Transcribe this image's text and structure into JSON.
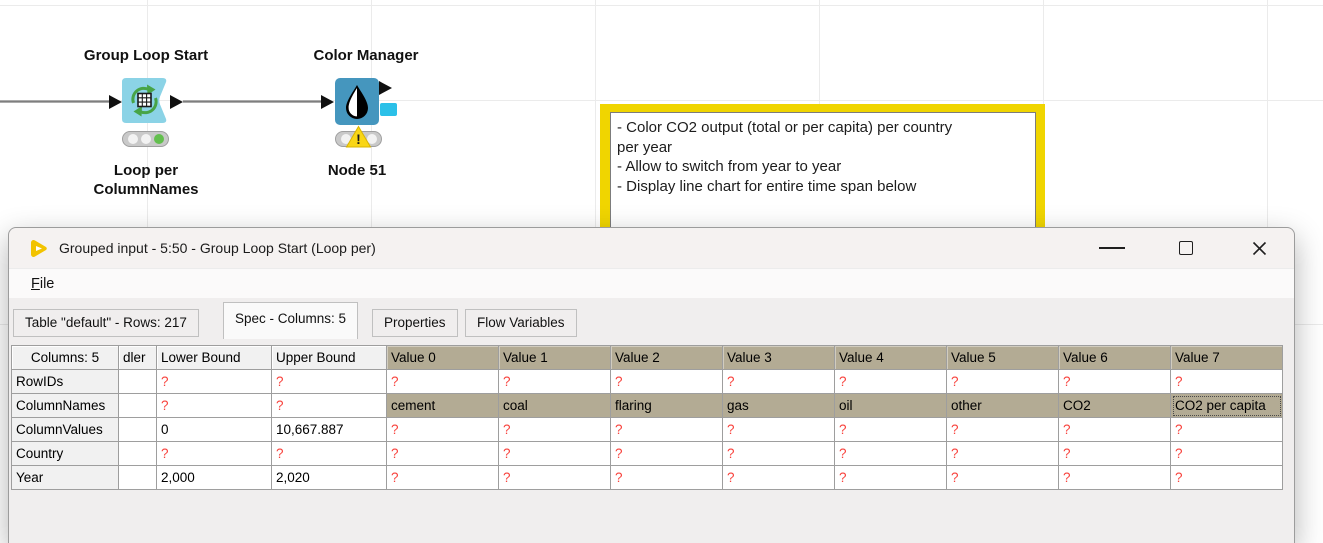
{
  "workflow": {
    "nodes": [
      {
        "title": "Group Loop Start",
        "status": "executed",
        "labels": [
          "Loop per",
          "ColumnNames"
        ]
      },
      {
        "title": "Color Manager",
        "status": "warning",
        "labels": [
          "Node 51"
        ]
      }
    ],
    "annotation": {
      "lines": [
        "- Color CO2 output (total or per capita) per country",
        "per year",
        "- Allow to switch from year to year",
        "- Display line chart for entire time span below"
      ]
    }
  },
  "dialog": {
    "title": "Grouped input - 5:50 - Group Loop Start (Loop per)",
    "menu": {
      "file_underlined": "F",
      "file_rest": "ile"
    },
    "tabs": [
      {
        "label": "Table \"default\" - Rows: 217",
        "selected": false
      },
      {
        "label": "Spec - Columns: 5",
        "selected": true
      },
      {
        "label": "Properties",
        "selected": false
      },
      {
        "label": "Flow Variables",
        "selected": false
      }
    ],
    "table": {
      "corner_header": "Columns: 5",
      "columns": [
        "dler",
        "Lower Bound",
        "Upper Bound",
        "Value 0",
        "Value 1",
        "Value 2",
        "Value 3",
        "Value 4",
        "Value 5",
        "Value 6",
        "Value 7"
      ],
      "rows": [
        {
          "name": "RowIDs",
          "highlight": false,
          "cells": [
            "",
            "?",
            "?",
            "?",
            "?",
            "?",
            "?",
            "?",
            "?",
            "?",
            "?"
          ]
        },
        {
          "name": "ColumnNames",
          "highlight": true,
          "cells": [
            "",
            "?",
            "?",
            "cement",
            "coal",
            "flaring",
            "gas",
            "oil",
            "other",
            "CO2",
            "CO2 per capita"
          ]
        },
        {
          "name": "ColumnValues",
          "highlight": false,
          "cells": [
            "",
            "0",
            "10,667.887",
            "?",
            "?",
            "?",
            "?",
            "?",
            "?",
            "?",
            "?"
          ]
        },
        {
          "name": "Country",
          "highlight": false,
          "cells": [
            "",
            "?",
            "?",
            "?",
            "?",
            "?",
            "?",
            "?",
            "?",
            "?",
            "?"
          ]
        },
        {
          "name": "Year",
          "highlight": false,
          "cells": [
            "",
            "2,000",
            "2,020",
            "?",
            "?",
            "?",
            "?",
            "?",
            "?",
            "?",
            "?"
          ]
        }
      ],
      "focused_cell": {
        "row_index": 1,
        "col_index": 10
      }
    }
  },
  "colors": {
    "annotation_yellow": "#f0d500",
    "loop_node_body": "#8bd3e6",
    "color_manager_body": "#4596be",
    "cyan_port": "#2bc0e8",
    "value_header_bg": "#b3ab94",
    "missing_value_red": "#f8423c",
    "status_green": "#63bf4e",
    "warning_yellow": "#f9d616"
  }
}
